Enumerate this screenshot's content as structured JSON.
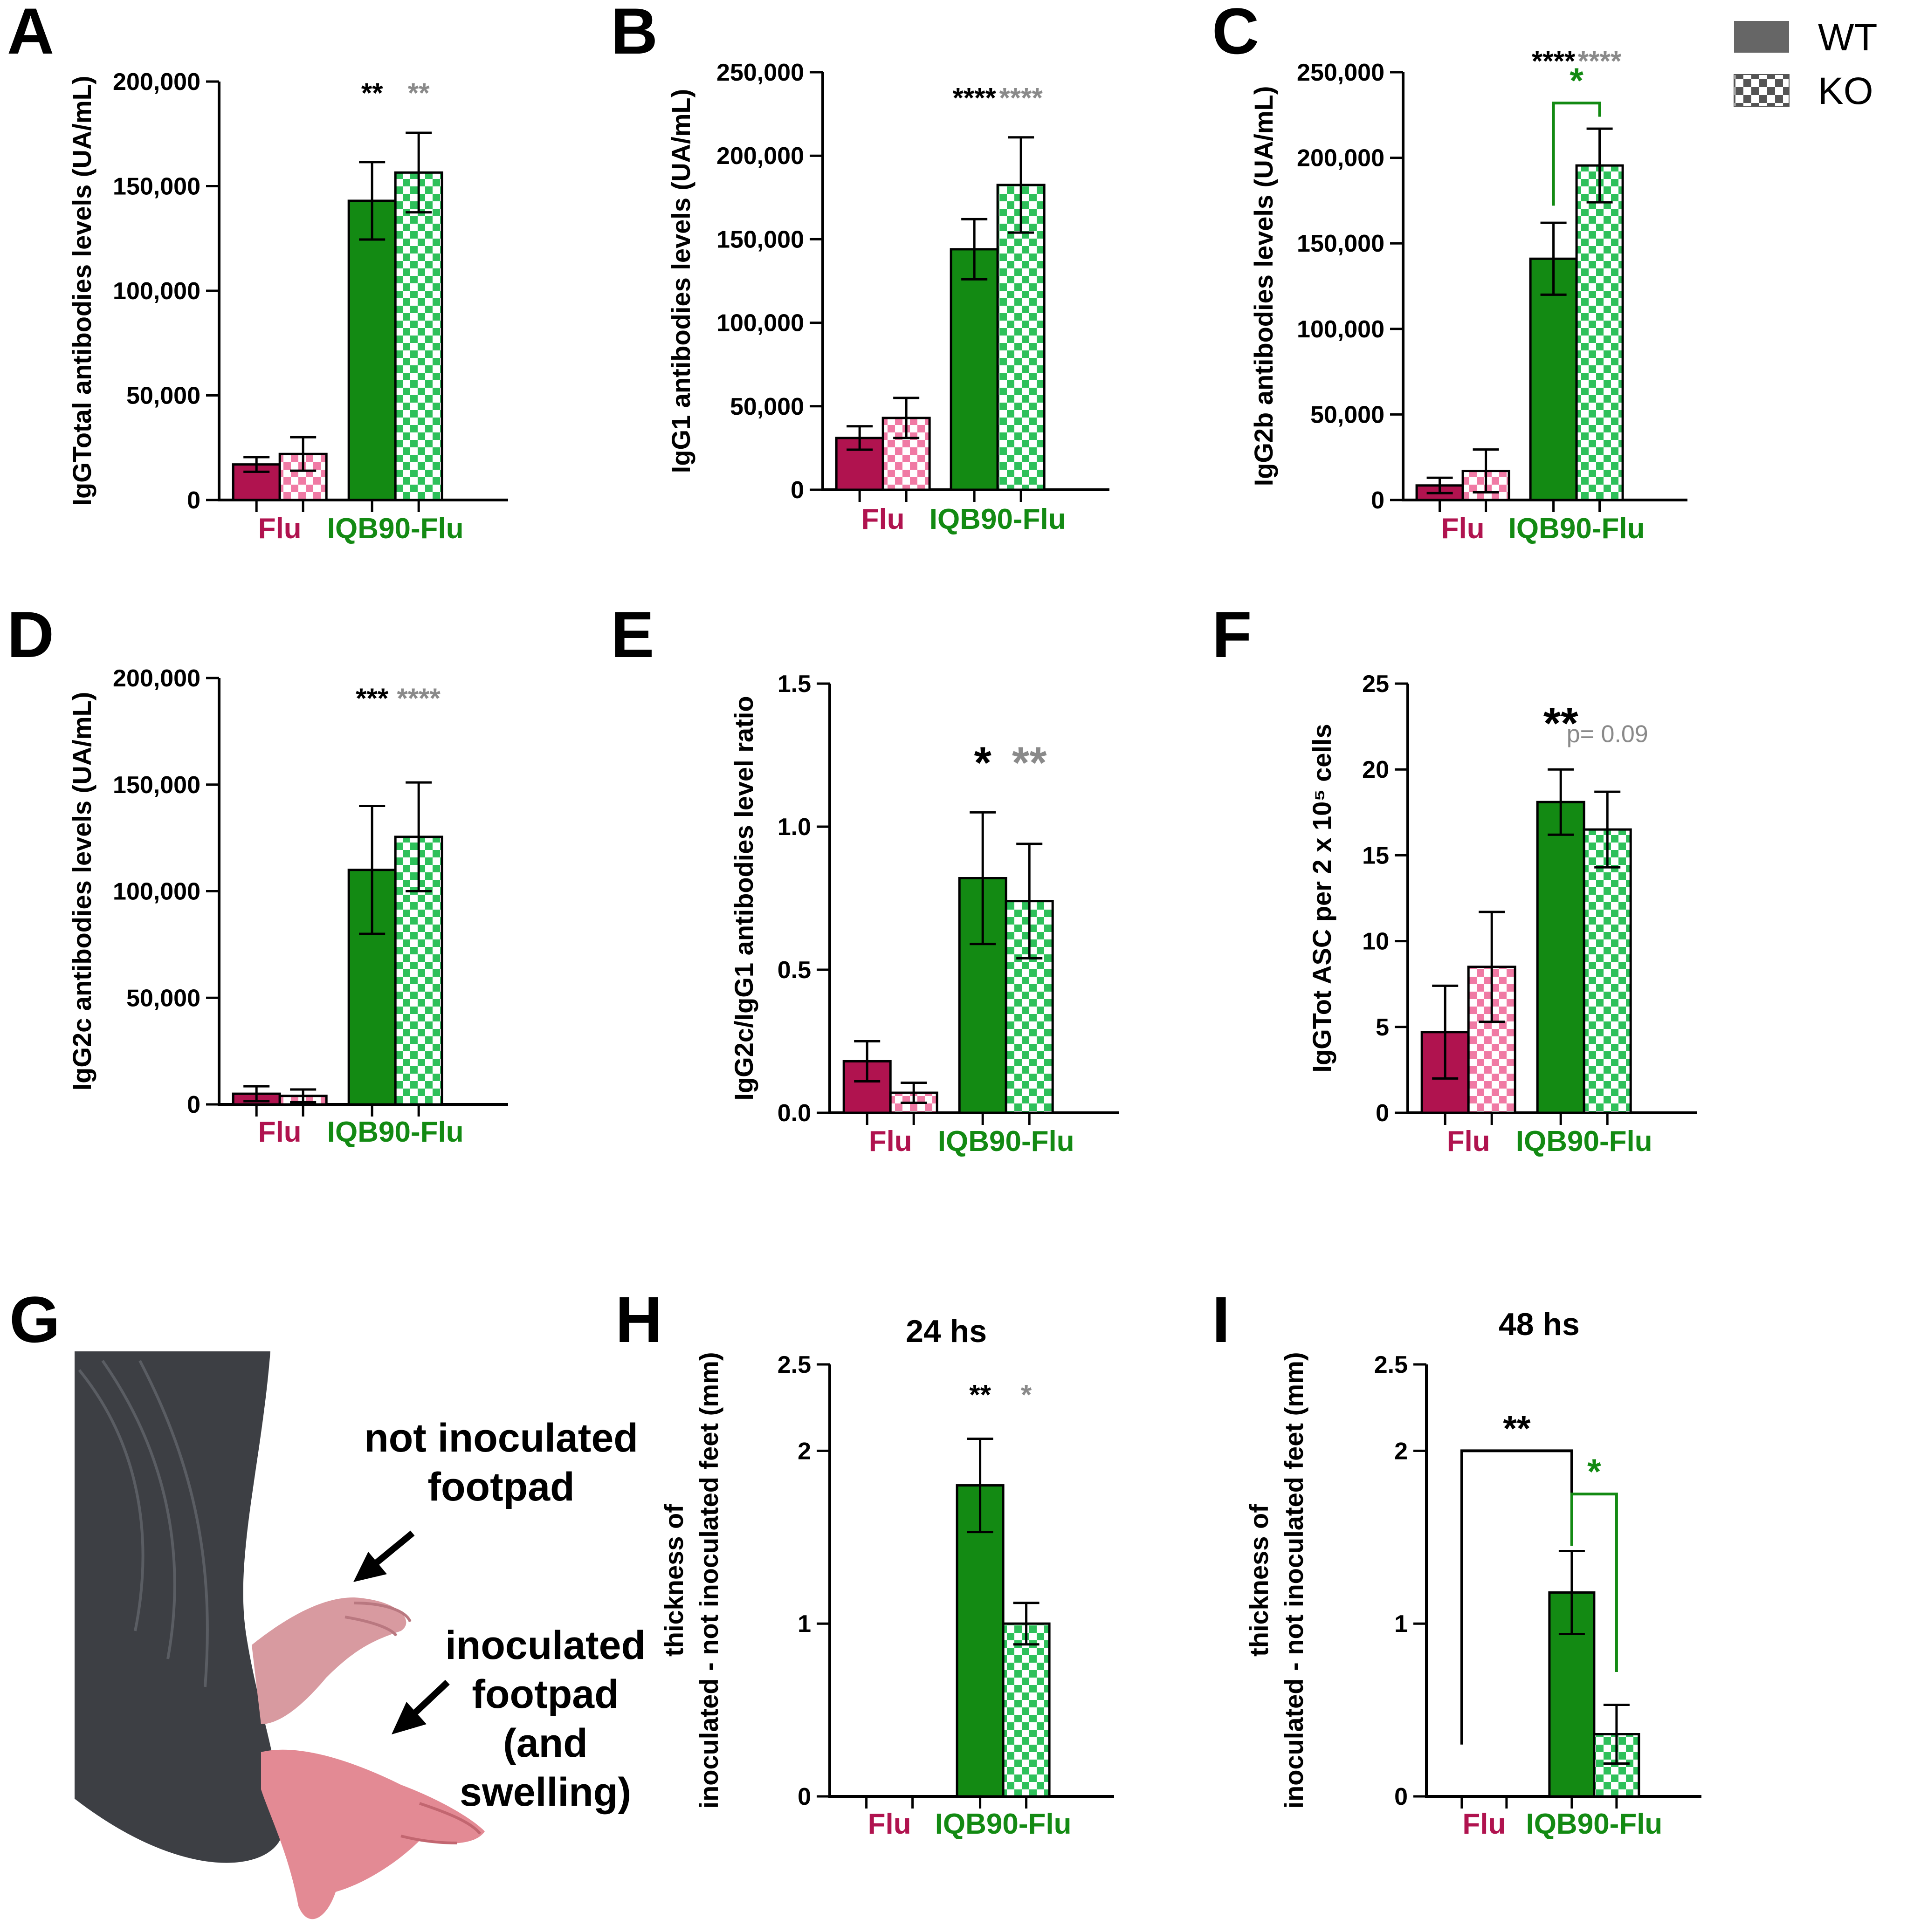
{
  "colors": {
    "flu_wt": "#b0134f",
    "flu_ko_check": "#f07aa4",
    "iqb_wt": "#138a13",
    "iqb_ko_check": "#2ec05a",
    "flu_label": "#b0134f",
    "iqb_label": "#138a13",
    "sig_wt": "#000000",
    "sig_ko": "#8a8a8a",
    "sig_compare": "#138a13"
  },
  "legend": {
    "wt_label": "WT",
    "ko_label": "KO",
    "wt_icon": "solid-fill-swatch",
    "ko_icon": "checkered-fill-swatch"
  },
  "photo": {
    "letter": "G",
    "label_top_line1": "not inoculated",
    "label_top_line2": "footpad",
    "label_bottom_line1": "inoculated",
    "label_bottom_line2": "footpad",
    "label_bottom_line3": "(and",
    "label_bottom_line4": "swelling)",
    "image_icon": "mouse-hind-feet-photo"
  },
  "chart_data": [
    {
      "id": "A",
      "type": "bar",
      "title": "",
      "ylabel": "IgGTotal antibodies levels (UA/mL)",
      "ylim": [
        0,
        200000
      ],
      "ticks": [
        0,
        50000,
        100000,
        150000,
        200000
      ],
      "tick_labels": [
        "0",
        "50,000",
        "100,000",
        "150,000",
        "200,000"
      ],
      "categories": [
        "Flu",
        "IQB90-Flu"
      ],
      "series": [
        {
          "name": "WT",
          "values": [
            17000,
            143000
          ],
          "errors": [
            3500,
            18500
          ]
        },
        {
          "name": "KO",
          "values": [
            22000,
            156500
          ],
          "errors": [
            8000,
            19000
          ]
        }
      ],
      "annotations": [
        {
          "text": "**",
          "group": 1,
          "bar": 0,
          "color": "sig_wt",
          "at": 190000
        },
        {
          "text": "**",
          "group": 1,
          "bar": 1,
          "color": "sig_ko",
          "at": 190000
        }
      ]
    },
    {
      "id": "B",
      "type": "bar",
      "title": "",
      "ylabel": "IgG1 antibodies levels (UA/mL)",
      "ylim": [
        0,
        250000
      ],
      "ticks": [
        0,
        50000,
        100000,
        150000,
        200000,
        250000
      ],
      "tick_labels": [
        "0",
        "50,000",
        "100,000",
        "150,000",
        "200,000",
        "250,000"
      ],
      "categories": [
        "Flu",
        "IQB90-Flu"
      ],
      "series": [
        {
          "name": "WT",
          "values": [
            31000,
            144000
          ],
          "errors": [
            7000,
            18000
          ]
        },
        {
          "name": "KO",
          "values": [
            43000,
            182500
          ],
          "errors": [
            12000,
            28500
          ]
        }
      ],
      "annotations": [
        {
          "text": "****",
          "group": 1,
          "bar": 0,
          "color": "sig_wt",
          "at": 229000
        },
        {
          "text": "****",
          "group": 1,
          "bar": 1,
          "color": "sig_ko",
          "at": 229000
        }
      ]
    },
    {
      "id": "C",
      "type": "bar",
      "title": "",
      "ylabel": "IgG2b antibodies levels (UA/mL)",
      "ylim": [
        0,
        250000
      ],
      "ticks": [
        0,
        50000,
        100000,
        150000,
        200000,
        250000
      ],
      "tick_labels": [
        "0",
        "50,000",
        "100,000",
        "150,000",
        "200,000",
        "250,000"
      ],
      "categories": [
        "Flu",
        "IQB90-Flu"
      ],
      "series": [
        {
          "name": "WT",
          "values": [
            8500,
            141000
          ],
          "errors": [
            4500,
            21000
          ]
        },
        {
          "name": "KO",
          "values": [
            17000,
            195500
          ],
          "errors": [
            12500,
            21500
          ]
        }
      ],
      "annotations": [
        {
          "text": "****",
          "group": 1,
          "bar": 0,
          "color": "sig_wt",
          "at": 251000
        },
        {
          "text": "****",
          "group": 1,
          "bar": 1,
          "color": "sig_ko",
          "at": 251000
        },
        {
          "text": "*",
          "bracket": [
            [
              1,
              0
            ],
            [
              1,
              1
            ]
          ],
          "color": "sig_compare",
          "top": 232000,
          "leg": [
            172000,
            224000
          ]
        }
      ]
    },
    {
      "id": "D",
      "type": "bar",
      "title": "",
      "ylabel": "IgG2c antibodies levels (UA/mL)",
      "ylim": [
        0,
        200000
      ],
      "ticks": [
        0,
        50000,
        100000,
        150000,
        200000
      ],
      "tick_labels": [
        "0",
        "50,000",
        "100,000",
        "150,000",
        "200,000"
      ],
      "categories": [
        "Flu",
        "IQB90-Flu"
      ],
      "series": [
        {
          "name": "WT",
          "values": [
            5000,
            110000
          ],
          "errors": [
            3500,
            30000
          ]
        },
        {
          "name": "KO",
          "values": [
            4000,
            125500
          ],
          "errors": [
            3000,
            25500
          ]
        }
      ],
      "annotations": [
        {
          "text": "***",
          "group": 1,
          "bar": 0,
          "color": "sig_wt",
          "at": 186000
        },
        {
          "text": "****",
          "group": 1,
          "bar": 1,
          "color": "sig_ko",
          "at": 186000
        }
      ]
    },
    {
      "id": "E",
      "type": "bar",
      "title": "",
      "ylabel": "IgG2c/IgG1 antibodies level ratio",
      "ylim": [
        0,
        1.5
      ],
      "ticks": [
        0,
        0.5,
        1.0,
        1.5
      ],
      "tick_labels": [
        "0.0",
        "0.5",
        "1.0",
        "1.5"
      ],
      "categories": [
        "Flu",
        "IQB90-Flu"
      ],
      "series": [
        {
          "name": "WT",
          "values": [
            0.18,
            0.82
          ],
          "errors": [
            0.07,
            0.23
          ]
        },
        {
          "name": "KO",
          "values": [
            0.07,
            0.74
          ],
          "errors": [
            0.035,
            0.2
          ]
        }
      ],
      "annotations": [
        {
          "text": "*",
          "group": 1,
          "bar": 0,
          "color": "sig_wt",
          "at": 1.17,
          "size": 96
        },
        {
          "text": "**",
          "group": 1,
          "bar": 1,
          "color": "sig_ko",
          "at": 1.17,
          "size": 96
        }
      ]
    },
    {
      "id": "F",
      "type": "bar",
      "title": "",
      "ylabel": "IgGTot ASC per 2 x 10⁵ cells",
      "ylim": [
        0,
        25
      ],
      "ticks": [
        0,
        5,
        10,
        15,
        20,
        25
      ],
      "tick_labels": [
        "0",
        "5",
        "10",
        "15",
        "20",
        "25"
      ],
      "categories": [
        "Flu",
        "IQB90-Flu"
      ],
      "series": [
        {
          "name": "WT",
          "values": [
            4.7,
            18.1
          ],
          "errors": [
            2.7,
            1.9
          ]
        },
        {
          "name": "KO",
          "values": [
            8.5,
            16.5
          ],
          "errors": [
            3.2,
            2.2
          ]
        }
      ],
      "annotations": [
        {
          "text": "**",
          "group": 1,
          "bar": 0,
          "color": "sig_wt",
          "at": 21.8,
          "size": 96
        },
        {
          "text": "p= 0.09",
          "group": 1,
          "bar": 1,
          "color": "sig_ko",
          "at": 21.6,
          "pvalue": true
        }
      ]
    },
    {
      "id": "H",
      "type": "bar",
      "title": "24 hs",
      "ylabel_lines": [
        "thickness of",
        "inoculated - not inoculated feet (mm)"
      ],
      "ylim": [
        0,
        2.5
      ],
      "ticks": [
        0,
        1,
        2,
        2.5
      ],
      "tick_labels": [
        "0",
        "1",
        "2",
        "2.5"
      ],
      "categories": [
        "Flu",
        "IQB90-Flu"
      ],
      "series": [
        {
          "name": "WT",
          "values": [
            0,
            1.8
          ],
          "errors": [
            0,
            0.27
          ]
        },
        {
          "name": "KO",
          "values": [
            0,
            1.0
          ],
          "errors": [
            0,
            0.12
          ]
        }
      ],
      "annotations": [
        {
          "text": "**",
          "group": 1,
          "bar": 0,
          "color": "sig_wt",
          "at": 2.27
        },
        {
          "text": "*",
          "group": 1,
          "bar": 1,
          "color": "sig_ko",
          "at": 2.27
        }
      ]
    },
    {
      "id": "I",
      "type": "bar",
      "title": "48 hs",
      "ylabel_lines": [
        "thickness of",
        "inoculated - not inoculated feet (mm)"
      ],
      "ylim": [
        0,
        2.5
      ],
      "ticks": [
        0,
        1,
        2,
        2.5
      ],
      "tick_labels": [
        "0",
        "1",
        "2",
        "2.5"
      ],
      "categories": [
        "Flu",
        "IQB90-Flu"
      ],
      "series": [
        {
          "name": "WT",
          "values": [
            0,
            1.18
          ],
          "errors": [
            0,
            0.24
          ]
        },
        {
          "name": "KO",
          "values": [
            0,
            0.36
          ],
          "errors": [
            0,
            0.17
          ]
        }
      ],
      "annotations": [
        {
          "text": "**",
          "bracket": [
            [
              0,
              0
            ],
            [
              1,
              0
            ]
          ],
          "color": "sig_wt",
          "top": 2.0,
          "leg": [
            0.3,
            1.45
          ]
        },
        {
          "text": "*",
          "bracket": [
            [
              1,
              0
            ],
            [
              1,
              1
            ]
          ],
          "color": "sig_compare",
          "top": 1.75,
          "leg": [
            1.45,
            0.72
          ]
        }
      ]
    }
  ]
}
